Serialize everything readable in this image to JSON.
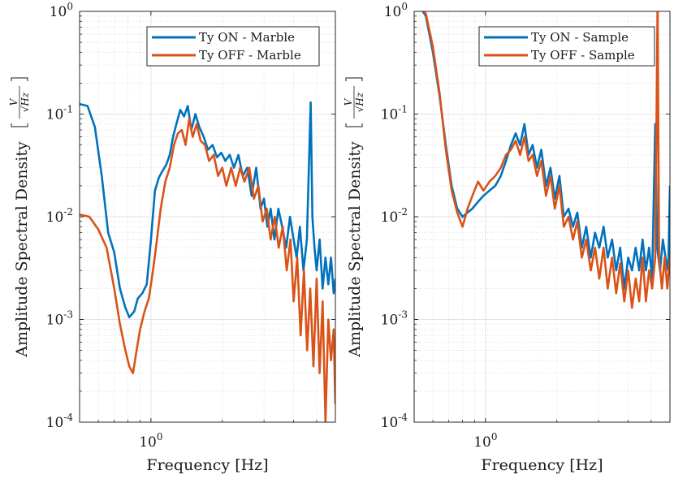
{
  "chart_data": [
    {
      "type": "line",
      "xscale": "log",
      "yscale": "log",
      "xlim": [
        0.5,
        6
      ],
      "ylim": [
        0.0001,
        1
      ],
      "xticks": [
        {
          "value": 1,
          "label": "10",
          "exp": "0"
        }
      ],
      "yticks": [
        {
          "value": 1,
          "label": "10",
          "exp": "0"
        },
        {
          "value": 0.1,
          "label": "10",
          "exp": "-1"
        },
        {
          "value": 0.01,
          "label": "10",
          "exp": "-2"
        },
        {
          "value": 0.001,
          "label": "10",
          "exp": "-3"
        },
        {
          "value": 0.0001,
          "label": "10",
          "exp": "-4"
        }
      ],
      "xlabel": "Frequency [Hz]",
      "ylabel": "Amplitude Spectral Density",
      "yunit": {
        "num": "V",
        "den": "√Hz"
      },
      "grid": true,
      "legend_position": "top-right",
      "series": [
        {
          "name": "Ty ON - Marble",
          "color": "#0072BD",
          "points": [
            [
              0.5,
              0.125
            ],
            [
              0.54,
              0.12
            ],
            [
              0.58,
              0.075
            ],
            [
              0.62,
              0.025
            ],
            [
              0.66,
              0.007
            ],
            [
              0.7,
              0.0045
            ],
            [
              0.74,
              0.002
            ],
            [
              0.78,
              0.0013
            ],
            [
              0.81,
              0.00105
            ],
            [
              0.85,
              0.0012
            ],
            [
              0.88,
              0.0016
            ],
            [
              0.92,
              0.0018
            ],
            [
              0.96,
              0.0022
            ],
            [
              1.0,
              0.006
            ],
            [
              1.04,
              0.018
            ],
            [
              1.08,
              0.024
            ],
            [
              1.12,
              0.028
            ],
            [
              1.16,
              0.032
            ],
            [
              1.2,
              0.04
            ],
            [
              1.24,
              0.06
            ],
            [
              1.28,
              0.08
            ],
            [
              1.33,
              0.11
            ],
            [
              1.38,
              0.095
            ],
            [
              1.43,
              0.12
            ],
            [
              1.48,
              0.07
            ],
            [
              1.54,
              0.1
            ],
            [
              1.6,
              0.075
            ],
            [
              1.67,
              0.06
            ],
            [
              1.74,
              0.045
            ],
            [
              1.82,
              0.05
            ],
            [
              1.9,
              0.038
            ],
            [
              1.98,
              0.042
            ],
            [
              2.06,
              0.035
            ],
            [
              2.15,
              0.04
            ],
            [
              2.24,
              0.03
            ],
            [
              2.34,
              0.04
            ],
            [
              2.44,
              0.025
            ],
            [
              2.55,
              0.03
            ],
            [
              2.66,
              0.016
            ],
            [
              2.78,
              0.03
            ],
            [
              2.9,
              0.012
            ],
            [
              3.0,
              0.015
            ],
            [
              3.1,
              0.008
            ],
            [
              3.2,
              0.012
            ],
            [
              3.32,
              0.006
            ],
            [
              3.45,
              0.012
            ],
            [
              3.58,
              0.008
            ],
            [
              3.72,
              0.005
            ],
            [
              3.86,
              0.01
            ],
            [
              4.0,
              0.006
            ],
            [
              4.12,
              0.004
            ],
            [
              4.25,
              0.008
            ],
            [
              4.4,
              0.003
            ],
            [
              4.55,
              0.006
            ],
            [
              4.72,
              0.13
            ],
            [
              4.8,
              0.01
            ],
            [
              4.9,
              0.005
            ],
            [
              5.0,
              0.003
            ],
            [
              5.15,
              0.006
            ],
            [
              5.3,
              0.002
            ],
            [
              5.45,
              0.004
            ],
            [
              5.6,
              0.0022
            ],
            [
              5.75,
              0.004
            ],
            [
              5.9,
              0.0018
            ],
            [
              6.0,
              0.0025
            ]
          ]
        },
        {
          "name": "Ty OFF - Marble",
          "color": "#D95319",
          "points": [
            [
              0.5,
              0.0105
            ],
            [
              0.55,
              0.01
            ],
            [
              0.6,
              0.0075
            ],
            [
              0.65,
              0.005
            ],
            [
              0.7,
              0.002
            ],
            [
              0.74,
              0.0009
            ],
            [
              0.78,
              0.0005
            ],
            [
              0.81,
              0.00035
            ],
            [
              0.84,
              0.0003
            ],
            [
              0.87,
              0.0005
            ],
            [
              0.9,
              0.0008
            ],
            [
              0.94,
              0.0012
            ],
            [
              0.98,
              0.0016
            ],
            [
              1.02,
              0.003
            ],
            [
              1.06,
              0.006
            ],
            [
              1.1,
              0.012
            ],
            [
              1.15,
              0.022
            ],
            [
              1.2,
              0.03
            ],
            [
              1.25,
              0.05
            ],
            [
              1.3,
              0.065
            ],
            [
              1.35,
              0.07
            ],
            [
              1.4,
              0.05
            ],
            [
              1.45,
              0.09
            ],
            [
              1.5,
              0.06
            ],
            [
              1.56,
              0.08
            ],
            [
              1.62,
              0.055
            ],
            [
              1.69,
              0.05
            ],
            [
              1.76,
              0.035
            ],
            [
              1.84,
              0.04
            ],
            [
              1.92,
              0.025
            ],
            [
              2.0,
              0.03
            ],
            [
              2.08,
              0.02
            ],
            [
              2.18,
              0.03
            ],
            [
              2.28,
              0.02
            ],
            [
              2.38,
              0.03
            ],
            [
              2.48,
              0.022
            ],
            [
              2.6,
              0.03
            ],
            [
              2.72,
              0.015
            ],
            [
              2.84,
              0.02
            ],
            [
              2.96,
              0.009
            ],
            [
              3.08,
              0.012
            ],
            [
              3.2,
              0.006
            ],
            [
              3.33,
              0.01
            ],
            [
              3.46,
              0.005
            ],
            [
              3.6,
              0.008
            ],
            [
              3.74,
              0.003
            ],
            [
              3.88,
              0.006
            ],
            [
              4.0,
              0.0015
            ],
            [
              4.14,
              0.004
            ],
            [
              4.28,
              0.0007
            ],
            [
              4.42,
              0.003
            ],
            [
              4.56,
              0.0005
            ],
            [
              4.7,
              0.002
            ],
            [
              4.85,
              0.00035
            ],
            [
              5.0,
              0.0025
            ],
            [
              5.15,
              0.0003
            ],
            [
              5.3,
              0.0015
            ],
            [
              5.45,
              0.0001
            ],
            [
              5.6,
              0.001
            ],
            [
              5.75,
              0.0004
            ],
            [
              5.9,
              0.0008
            ],
            [
              6.0,
              0.00015
            ]
          ]
        }
      ]
    },
    {
      "type": "line",
      "xscale": "log",
      "yscale": "log",
      "xlim": [
        0.5,
        6
      ],
      "ylim": [
        0.0001,
        1
      ],
      "xticks": [
        {
          "value": 1,
          "label": "10",
          "exp": "0"
        }
      ],
      "yticks": [
        {
          "value": 1,
          "label": "10",
          "exp": "0"
        },
        {
          "value": 0.1,
          "label": "10",
          "exp": "-1"
        },
        {
          "value": 0.01,
          "label": "10",
          "exp": "-2"
        },
        {
          "value": 0.001,
          "label": "10",
          "exp": "-3"
        },
        {
          "value": 0.0001,
          "label": "10",
          "exp": "-4"
        }
      ],
      "xlabel": "Frequency [Hz]",
      "ylabel": "Amplitude Spectral Density",
      "yunit": {
        "num": "V",
        "den": "√Hz"
      },
      "grid": true,
      "legend_position": "top-right",
      "series": [
        {
          "name": "Ty ON - Sample",
          "color": "#0072BD",
          "points": [
            [
              0.5,
              1.2
            ],
            [
              0.53,
              1.1
            ],
            [
              0.56,
              0.9
            ],
            [
              0.6,
              0.4
            ],
            [
              0.64,
              0.15
            ],
            [
              0.68,
              0.05
            ],
            [
              0.72,
              0.02
            ],
            [
              0.76,
              0.012
            ],
            [
              0.8,
              0.01
            ],
            [
              0.84,
              0.011
            ],
            [
              0.88,
              0.012
            ],
            [
              0.93,
              0.014
            ],
            [
              0.98,
              0.016
            ],
            [
              1.04,
              0.018
            ],
            [
              1.1,
              0.02
            ],
            [
              1.16,
              0.025
            ],
            [
              1.22,
              0.035
            ],
            [
              1.28,
              0.05
            ],
            [
              1.34,
              0.065
            ],
            [
              1.4,
              0.05
            ],
            [
              1.46,
              0.08
            ],
            [
              1.52,
              0.04
            ],
            [
              1.58,
              0.05
            ],
            [
              1.65,
              0.03
            ],
            [
              1.72,
              0.045
            ],
            [
              1.8,
              0.02
            ],
            [
              1.88,
              0.03
            ],
            [
              1.96,
              0.015
            ],
            [
              2.05,
              0.025
            ],
            [
              2.14,
              0.01
            ],
            [
              2.24,
              0.012
            ],
            [
              2.34,
              0.008
            ],
            [
              2.44,
              0.011
            ],
            [
              2.55,
              0.005
            ],
            [
              2.66,
              0.008
            ],
            [
              2.78,
              0.004
            ],
            [
              2.9,
              0.007
            ],
            [
              3.02,
              0.005
            ],
            [
              3.15,
              0.008
            ],
            [
              3.28,
              0.004
            ],
            [
              3.42,
              0.006
            ],
            [
              3.56,
              0.003
            ],
            [
              3.7,
              0.005
            ],
            [
              3.85,
              0.002
            ],
            [
              4.0,
              0.004
            ],
            [
              4.15,
              0.003
            ],
            [
              4.3,
              0.005
            ],
            [
              4.45,
              0.003
            ],
            [
              4.6,
              0.006
            ],
            [
              4.75,
              0.003
            ],
            [
              4.9,
              0.005
            ],
            [
              5.05,
              0.0025
            ],
            [
              5.2,
              0.08
            ],
            [
              5.3,
              0.005
            ],
            [
              5.45,
              0.003
            ],
            [
              5.6,
              0.006
            ],
            [
              5.75,
              0.004
            ],
            [
              5.9,
              0.003
            ],
            [
              6.0,
              0.02
            ]
          ]
        },
        {
          "name": "Ty OFF - Sample",
          "color": "#D95319",
          "points": [
            [
              0.5,
              1.2
            ],
            [
              0.53,
              1.1
            ],
            [
              0.56,
              0.95
            ],
            [
              0.6,
              0.45
            ],
            [
              0.64,
              0.16
            ],
            [
              0.68,
              0.045
            ],
            [
              0.72,
              0.018
            ],
            [
              0.76,
              0.011
            ],
            [
              0.8,
              0.008
            ],
            [
              0.84,
              0.012
            ],
            [
              0.88,
              0.016
            ],
            [
              0.93,
              0.022
            ],
            [
              0.98,
              0.018
            ],
            [
              1.04,
              0.022
            ],
            [
              1.1,
              0.025
            ],
            [
              1.16,
              0.03
            ],
            [
              1.22,
              0.04
            ],
            [
              1.28,
              0.045
            ],
            [
              1.34,
              0.055
            ],
            [
              1.4,
              0.04
            ],
            [
              1.46,
              0.06
            ],
            [
              1.52,
              0.035
            ],
            [
              1.58,
              0.04
            ],
            [
              1.65,
              0.025
            ],
            [
              1.72,
              0.035
            ],
            [
              1.8,
              0.016
            ],
            [
              1.88,
              0.025
            ],
            [
              1.96,
              0.012
            ],
            [
              2.05,
              0.02
            ],
            [
              2.14,
              0.008
            ],
            [
              2.24,
              0.01
            ],
            [
              2.34,
              0.006
            ],
            [
              2.44,
              0.009
            ],
            [
              2.55,
              0.004
            ],
            [
              2.66,
              0.006
            ],
            [
              2.78,
              0.003
            ],
            [
              2.9,
              0.005
            ],
            [
              3.02,
              0.0025
            ],
            [
              3.15,
              0.005
            ],
            [
              3.28,
              0.002
            ],
            [
              3.42,
              0.004
            ],
            [
              3.56,
              0.0018
            ],
            [
              3.7,
              0.0035
            ],
            [
              3.85,
              0.0015
            ],
            [
              4.0,
              0.003
            ],
            [
              4.15,
              0.0013
            ],
            [
              4.3,
              0.0025
            ],
            [
              4.45,
              0.0015
            ],
            [
              4.6,
              0.004
            ],
            [
              4.75,
              0.0015
            ],
            [
              4.9,
              0.003
            ],
            [
              5.05,
              0.002
            ],
            [
              5.2,
              0.004
            ],
            [
              5.32,
              1.3
            ],
            [
              5.4,
              0.004
            ],
            [
              5.55,
              0.002
            ],
            [
              5.7,
              0.004
            ],
            [
              5.85,
              0.002
            ],
            [
              6.0,
              0.004
            ]
          ]
        }
      ]
    }
  ]
}
